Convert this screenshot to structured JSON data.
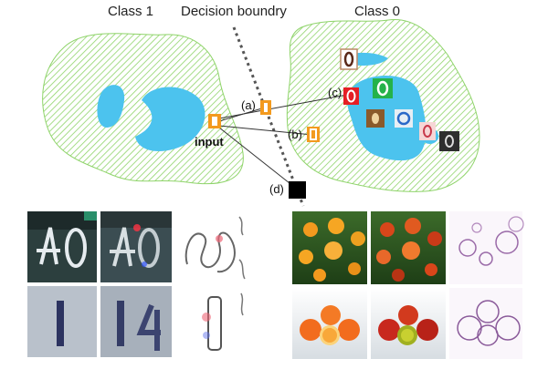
{
  "diagram": {
    "class1_label": "Class 1",
    "boundary_label": "Decision boundry",
    "class0_label": "Class 0",
    "input_label": "input",
    "markers": {
      "a": "(a)",
      "b": "(b)",
      "c": "(c)",
      "d": "(d)"
    },
    "colors": {
      "hatch": "#8fd46a",
      "core": "#4cc3ee",
      "boundary": "#555555",
      "orange_tile": "#f39a1e",
      "red_tile": "#e51e25",
      "green_tile": "#25b24a",
      "brown_tile": "#8a5a2b",
      "black_tile": "#000000"
    }
  }
}
